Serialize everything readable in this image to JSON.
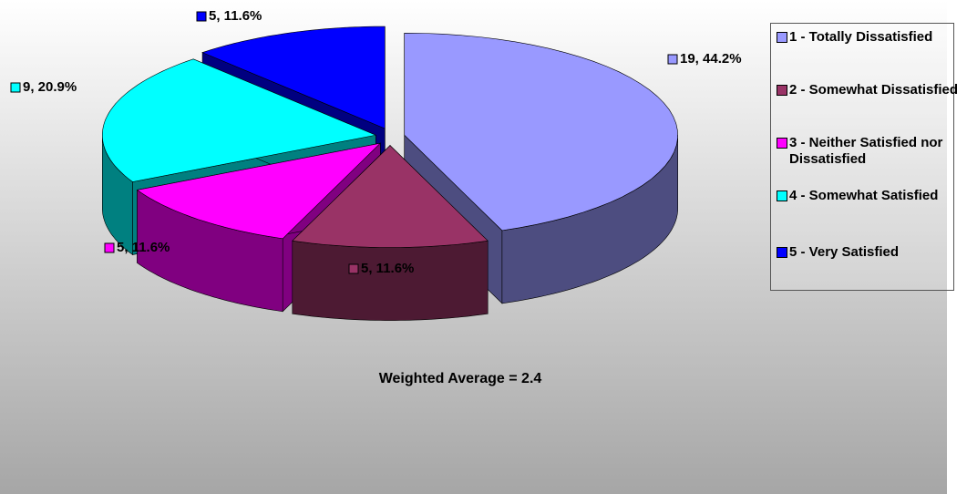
{
  "chart_data": {
    "type": "pie3d",
    "categories": [
      "1 - Totally Dissatisfied",
      "2 - Somewhat Dissatisfied",
      "3 - Neither Satisfied nor Dissatisfied",
      "4 - Somewhat Satisfied",
      "5 - Very Satisfied"
    ],
    "values": [
      19,
      5,
      5,
      9,
      5
    ],
    "value_labels": [
      "19, 44.2%",
      "5, 11.6%",
      "5, 11.6%",
      "9, 20.9%",
      "5, 11.6%"
    ],
    "colors": [
      "#9999ff",
      "#993366",
      "#ff00ff",
      "#00ffff",
      "#0000ff"
    ],
    "annotation": "Weighted Average = 2.4",
    "legend": "right"
  }
}
